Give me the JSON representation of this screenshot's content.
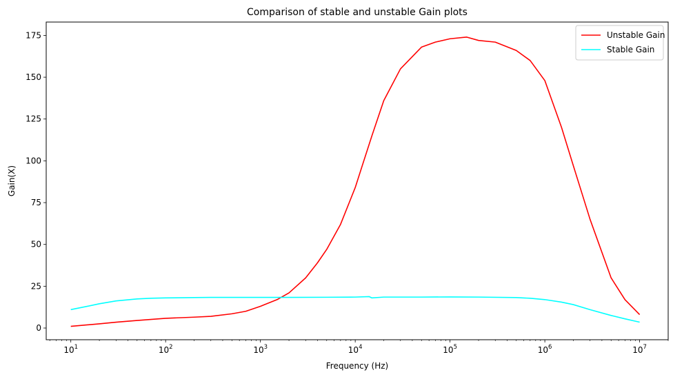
{
  "chart_data": {
    "type": "line",
    "title": "Comparison of stable and unstable Gain plots",
    "xlabel": "Frequency (Hz)",
    "ylabel": "Gain(X)",
    "xscale": "log",
    "xlim": [
      5.5,
      20000000
    ],
    "ylim": [
      -7,
      183
    ],
    "x_ticks": [
      10,
      100,
      1000,
      10000,
      100000,
      1000000,
      10000000
    ],
    "x_tick_labels": [
      {
        "base": "10",
        "exp": "1"
      },
      {
        "base": "10",
        "exp": "2"
      },
      {
        "base": "10",
        "exp": "3"
      },
      {
        "base": "10",
        "exp": "4"
      },
      {
        "base": "10",
        "exp": "5"
      },
      {
        "base": "10",
        "exp": "6"
      },
      {
        "base": "10",
        "exp": "7"
      }
    ],
    "y_ticks": [
      0,
      25,
      50,
      75,
      100,
      125,
      150,
      175
    ],
    "y_tick_labels": [
      "0",
      "25",
      "50",
      "75",
      "100",
      "125",
      "150",
      "175"
    ],
    "grid": false,
    "legend_position": "top-right",
    "series": [
      {
        "name": "Unstable Gain",
        "color": "#ff0000",
        "x": [
          10,
          20,
          30,
          50,
          100,
          200,
          300,
          500,
          700,
          1000,
          1500,
          2000,
          3000,
          4000,
          5000,
          7000,
          10000,
          12000,
          15000,
          20000,
          30000,
          50000,
          70000,
          100000,
          150000,
          200000,
          300000,
          500000,
          700000,
          1000000,
          1500000,
          2000000,
          3000000,
          5000000,
          7000000,
          10000000
        ],
        "y": [
          1,
          2.5,
          3.5,
          4.5,
          5.8,
          6.5,
          7,
          8.5,
          10,
          13,
          17,
          21,
          30,
          39,
          47,
          62,
          84,
          98,
          115,
          136,
          155,
          168,
          171,
          173,
          174,
          172,
          171,
          166,
          160,
          148,
          120,
          97,
          65,
          30,
          17,
          8
        ]
      },
      {
        "name": "Stable Gain",
        "color": "#00ffff",
        "x": [
          10,
          15,
          20,
          30,
          50,
          70,
          100,
          200,
          300,
          500,
          1000,
          2000,
          5000,
          10000,
          14000,
          15000,
          20000,
          50000,
          100000,
          200000,
          500000,
          700000,
          1000000,
          1500000,
          2000000,
          3000000,
          5000000,
          7000000,
          10000000
        ],
        "y": [
          11,
          13,
          14.5,
          16.2,
          17.4,
          17.8,
          18,
          18.2,
          18.3,
          18.3,
          18.3,
          18.3,
          18.4,
          18.5,
          18.8,
          18,
          18.5,
          18.5,
          18.6,
          18.5,
          18.2,
          17.8,
          17,
          15.5,
          14,
          11,
          7.5,
          5.5,
          3.5
        ]
      }
    ]
  }
}
